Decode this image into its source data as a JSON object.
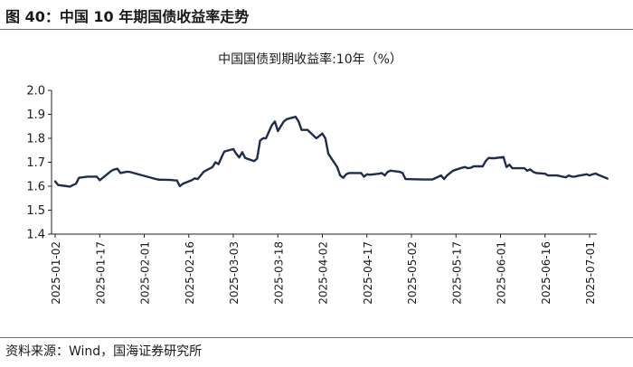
{
  "figure": {
    "label": "图 40：中国 10 年期国债收益率走势",
    "source": "资料来源：Wind，国海证券研究所"
  },
  "colors": {
    "line": "#1f2d4d",
    "axis": "#222222",
    "text": "#1a1a1a"
  },
  "chart_data": {
    "type": "line",
    "title": "中国国债到期收益率:10年（%）",
    "xlabel": "",
    "ylabel": "",
    "ylim": [
      1.4,
      2.0
    ],
    "y_ticks": [
      "1.4",
      "1.5",
      "1.6",
      "1.7",
      "1.8",
      "1.9",
      "2.0"
    ],
    "x_ticks": [
      "2025-01-02",
      "2025-01-17",
      "2025-02-01",
      "2025-02-16",
      "2025-03-03",
      "2025-03-18",
      "2025-04-02",
      "2025-04-17",
      "2025-05-02",
      "2025-05-17",
      "2025-06-01",
      "2025-06-16",
      "2025-07-01"
    ],
    "grid": false,
    "legend": "none",
    "series": [
      {
        "points": [
          [
            "2025-01-02",
            1.62
          ],
          [
            "2025-01-03",
            1.605
          ],
          [
            "2025-01-06",
            1.6
          ],
          [
            "2025-01-07",
            1.598
          ],
          [
            "2025-01-08",
            1.605
          ],
          [
            "2025-01-09",
            1.61
          ],
          [
            "2025-01-10",
            1.635
          ],
          [
            "2025-01-13",
            1.64
          ],
          [
            "2025-01-14",
            1.64
          ],
          [
            "2025-01-15",
            1.64
          ],
          [
            "2025-01-16",
            1.64
          ],
          [
            "2025-01-17",
            1.625
          ],
          [
            "2025-01-20",
            1.655
          ],
          [
            "2025-01-21",
            1.665
          ],
          [
            "2025-01-22",
            1.67
          ],
          [
            "2025-01-23",
            1.673
          ],
          [
            "2025-01-24",
            1.655
          ],
          [
            "2025-01-26",
            1.66
          ],
          [
            "2025-01-27",
            1.66
          ],
          [
            "2025-02-05",
            1.63
          ],
          [
            "2025-02-06",
            1.627
          ],
          [
            "2025-02-07",
            1.627
          ],
          [
            "2025-02-10",
            1.626
          ],
          [
            "2025-02-11",
            1.625
          ],
          [
            "2025-02-12",
            1.624
          ],
          [
            "2025-02-13",
            1.6
          ],
          [
            "2025-02-14",
            1.61
          ],
          [
            "2025-02-17",
            1.625
          ],
          [
            "2025-02-18",
            1.633
          ],
          [
            "2025-02-19",
            1.63
          ],
          [
            "2025-02-20",
            1.645
          ],
          [
            "2025-02-21",
            1.66
          ],
          [
            "2025-02-24",
            1.68
          ],
          [
            "2025-02-25",
            1.7
          ],
          [
            "2025-02-26",
            1.692
          ],
          [
            "2025-02-27",
            1.72
          ],
          [
            "2025-02-28",
            1.745
          ],
          [
            "2025-03-03",
            1.755
          ],
          [
            "2025-03-04",
            1.735
          ],
          [
            "2025-03-05",
            1.72
          ],
          [
            "2025-03-06",
            1.742
          ],
          [
            "2025-03-07",
            1.718
          ],
          [
            "2025-03-10",
            1.705
          ],
          [
            "2025-03-11",
            1.715
          ],
          [
            "2025-03-12",
            1.79
          ],
          [
            "2025-03-13",
            1.8
          ],
          [
            "2025-03-14",
            1.8
          ],
          [
            "2025-03-16",
            1.855
          ],
          [
            "2025-03-17",
            1.87
          ],
          [
            "2025-03-18",
            1.83
          ],
          [
            "2025-03-19",
            1.85
          ],
          [
            "2025-03-20",
            1.87
          ],
          [
            "2025-03-21",
            1.88
          ],
          [
            "2025-03-24",
            1.89
          ],
          [
            "2025-03-25",
            1.87
          ],
          [
            "2025-03-26",
            1.835
          ],
          [
            "2025-03-27",
            1.835
          ],
          [
            "2025-03-28",
            1.835
          ],
          [
            "2025-03-31",
            1.8
          ],
          [
            "2025-04-01",
            1.81
          ],
          [
            "2025-04-02",
            1.82
          ],
          [
            "2025-04-03",
            1.8
          ],
          [
            "2025-04-04",
            1.735
          ],
          [
            "2025-04-07",
            1.68
          ],
          [
            "2025-04-08",
            1.645
          ],
          [
            "2025-04-09",
            1.635
          ],
          [
            "2025-04-10",
            1.65
          ],
          [
            "2025-04-11",
            1.655
          ],
          [
            "2025-04-14",
            1.655
          ],
          [
            "2025-04-15",
            1.655
          ],
          [
            "2025-04-16",
            1.64
          ],
          [
            "2025-04-17",
            1.65
          ],
          [
            "2025-04-18",
            1.648
          ],
          [
            "2025-04-21",
            1.652
          ],
          [
            "2025-04-22",
            1.655
          ],
          [
            "2025-04-23",
            1.645
          ],
          [
            "2025-04-24",
            1.66
          ],
          [
            "2025-04-25",
            1.665
          ],
          [
            "2025-04-28",
            1.66
          ],
          [
            "2025-04-29",
            1.655
          ],
          [
            "2025-04-30",
            1.63
          ],
          [
            "2025-05-06",
            1.628
          ],
          [
            "2025-05-07",
            1.628
          ],
          [
            "2025-05-08",
            1.628
          ],
          [
            "2025-05-09",
            1.628
          ],
          [
            "2025-05-12",
            1.645
          ],
          [
            "2025-05-13",
            1.63
          ],
          [
            "2025-05-14",
            1.645
          ],
          [
            "2025-05-15",
            1.655
          ],
          [
            "2025-05-16",
            1.665
          ],
          [
            "2025-05-19",
            1.677
          ],
          [
            "2025-05-20",
            1.68
          ],
          [
            "2025-05-21",
            1.675
          ],
          [
            "2025-05-22",
            1.677
          ],
          [
            "2025-05-23",
            1.683
          ],
          [
            "2025-05-26",
            1.683
          ],
          [
            "2025-05-27",
            1.705
          ],
          [
            "2025-05-28",
            1.718
          ],
          [
            "2025-05-29",
            1.717
          ],
          [
            "2025-05-30",
            1.717
          ],
          [
            "2025-06-02",
            1.722
          ],
          [
            "2025-06-03",
            1.68
          ],
          [
            "2025-06-04",
            1.69
          ],
          [
            "2025-06-05",
            1.675
          ],
          [
            "2025-06-06",
            1.675
          ],
          [
            "2025-06-09",
            1.675
          ],
          [
            "2025-06-10",
            1.665
          ],
          [
            "2025-06-11",
            1.67
          ],
          [
            "2025-06-12",
            1.66
          ],
          [
            "2025-06-13",
            1.655
          ],
          [
            "2025-06-16",
            1.652
          ],
          [
            "2025-06-17",
            1.645
          ],
          [
            "2025-06-18",
            1.645
          ],
          [
            "2025-06-19",
            1.645
          ],
          [
            "2025-06-20",
            1.645
          ],
          [
            "2025-06-23",
            1.637
          ],
          [
            "2025-06-24",
            1.645
          ],
          [
            "2025-06-25",
            1.64
          ],
          [
            "2025-06-26",
            1.64
          ],
          [
            "2025-06-27",
            1.643
          ],
          [
            "2025-06-30",
            1.65
          ],
          [
            "2025-07-01",
            1.645
          ],
          [
            "2025-07-02",
            1.65
          ],
          [
            "2025-07-03",
            1.653
          ],
          [
            "2025-07-04",
            1.647
          ],
          [
            "2025-07-07",
            1.632
          ]
        ]
      }
    ]
  }
}
